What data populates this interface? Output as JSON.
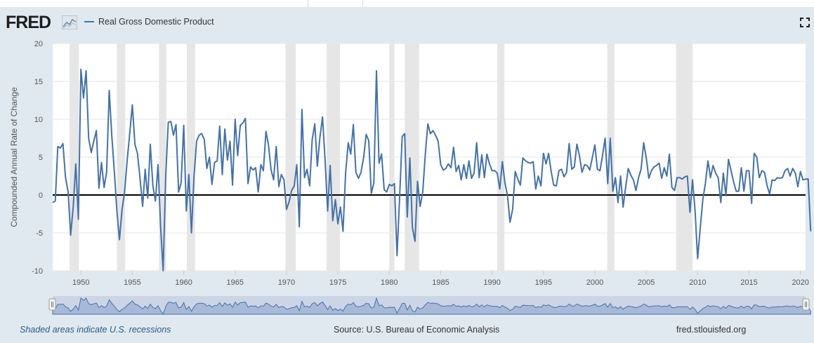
{
  "header": {
    "logo_text": "FRED",
    "legend_label": "Real Gross Domestic Product"
  },
  "footer": {
    "recession_note": "Shaded areas indicate U.S. recessions",
    "source": "Source: U.S. Bureau of Economic Analysis",
    "site": "fred.stlouisfed.org"
  },
  "colors": {
    "series": "#4572a7",
    "recession": "#e6e6e6",
    "background": "#e1e9f0"
  },
  "chart_data": {
    "type": "line",
    "title": "",
    "xlabel": "",
    "ylabel": "Compounded Annual Rate of Change",
    "xlim": [
      1947.25,
      2020.5
    ],
    "ylim": [
      -10,
      20
    ],
    "yticks": [
      -10,
      -5,
      0,
      5,
      10,
      15,
      20
    ],
    "xticks": [
      1950,
      1955,
      1960,
      1965,
      1970,
      1975,
      1980,
      1985,
      1990,
      1995,
      2000,
      2005,
      2010,
      2015,
      2020
    ],
    "ytick_labels": [
      "-10",
      "-5",
      "0",
      "5",
      "10",
      "15",
      "20"
    ],
    "xtick_labels": [
      "1950",
      "1955",
      "1960",
      "1965",
      "1970",
      "1975",
      "1980",
      "1985",
      "1990",
      "1995",
      "2000",
      "2005",
      "2010",
      "2015",
      "2020"
    ],
    "recessions": [
      [
        1948.9,
        1949.8
      ],
      [
        1953.5,
        1954.3
      ],
      [
        1957.6,
        1958.3
      ],
      [
        1960.3,
        1961.1
      ],
      [
        1969.9,
        1970.9
      ],
      [
        1973.9,
        1975.2
      ],
      [
        1980.0,
        1980.5
      ],
      [
        1981.5,
        1982.9
      ],
      [
        1990.5,
        1991.2
      ],
      [
        2001.2,
        2001.9
      ],
      [
        2007.9,
        2009.5
      ]
    ],
    "zero_line": 0,
    "series": [
      {
        "name": "Real Gross Domestic Product",
        "start": 1947.25,
        "step": 0.25,
        "values": [
          -1.0,
          -0.8,
          6.4,
          6.2,
          6.8,
          2.3,
          0.4,
          -5.3,
          -1.5,
          4.1,
          -3.2,
          16.6,
          12.8,
          16.4,
          7.5,
          5.6,
          7.1,
          8.5,
          0.9,
          4.3,
          1.0,
          3.0,
          13.8,
          7.8,
          3.1,
          -2.2,
          -5.9,
          -1.9,
          0.4,
          4.6,
          8.2,
          11.9,
          6.7,
          5.5,
          2.2,
          -1.5,
          3.4,
          -0.4,
          6.7,
          1.2,
          -0.8,
          4.0,
          -4.2,
          -10.0,
          2.6,
          9.6,
          9.7,
          7.9,
          9.3,
          0.4,
          1.6,
          9.2,
          -2.1,
          2.7,
          -5.0,
          2.4,
          7.1,
          7.9,
          8.1,
          7.3,
          3.5,
          5.0,
          1.4,
          4.3,
          4.5,
          9.1,
          2.7,
          8.7,
          4.6,
          7.1,
          1.3,
          10.0,
          5.2,
          9.2,
          9.5,
          10.1,
          1.5,
          3.7,
          3.3,
          3.6,
          0.4,
          4.0,
          3.2,
          8.4,
          6.6,
          3.3,
          2.0,
          6.4,
          1.1,
          2.7,
          2.0,
          -1.9,
          -0.9,
          0.6,
          1.2,
          4.0,
          -4.2,
          11.3,
          2.3,
          3.4,
          1.2,
          7.3,
          9.4,
          3.8,
          7.6,
          10.3,
          4.7,
          -2.1,
          3.9,
          -3.4,
          -0.6,
          -3.8,
          -1.6,
          -4.8,
          2.9,
          6.9,
          5.4,
          9.3,
          3.0,
          2.2,
          3.0,
          4.9,
          8.0,
          7.2,
          0.2,
          1.6,
          16.4,
          4.2,
          5.4,
          0.7,
          0.4,
          1.4,
          1.2,
          1.5,
          -8.0,
          -0.5,
          7.7,
          8.1,
          -2.9,
          4.9,
          -4.3,
          -6.1,
          1.8,
          -1.5,
          0.4,
          5.3,
          9.4,
          8.1,
          8.5,
          7.9,
          7.1,
          4.0,
          3.3,
          3.5,
          4.1,
          3.6,
          6.3,
          3.1,
          3.9,
          2.0,
          4.0,
          2.2,
          4.5,
          2.2,
          2.9,
          6.9,
          2.3,
          5.3,
          2.3,
          5.4,
          4.1,
          3.2,
          3.2,
          2.9,
          0.8,
          4.4,
          1.6,
          -0.1,
          -3.6,
          -1.9,
          3.1,
          2.1,
          1.3,
          4.9,
          4.5,
          4.3,
          4.2,
          4.4,
          0.8,
          2.5,
          1.2,
          5.5,
          4.1,
          5.5,
          3.1,
          1.3,
          1.2,
          3.2,
          3.4,
          2.4,
          3.0,
          6.8,
          3.4,
          3.7,
          6.7,
          5.2,
          3.0,
          4.0,
          3.9,
          3.3,
          4.9,
          6.6,
          3.4,
          3.2,
          5.3,
          7.5,
          1.5,
          7.5,
          0.5,
          2.3,
          -1.0,
          2.5,
          -1.6,
          1.1,
          3.5,
          2.6,
          2.0,
          0.6,
          2.3,
          3.4,
          6.9,
          4.9,
          2.2,
          3.2,
          3.7,
          3.9,
          4.2,
          2.2,
          3.6,
          2.5,
          5.4,
          1.0,
          0.6,
          2.3,
          2.3,
          2.1,
          2.4,
          2.5,
          -2.3,
          2.0,
          -2.1,
          -8.4,
          -4.4,
          -0.6,
          1.5,
          4.5,
          2.3,
          3.9,
          2.9,
          2.3,
          -1.0,
          2.9,
          -0.1,
          4.7,
          3.2,
          1.7,
          0.5,
          0.5,
          3.6,
          0.5,
          3.2,
          3.2,
          -1.1,
          5.5,
          5.0,
          2.3,
          3.2,
          3.0,
          1.3,
          0.1,
          2.0,
          1.9,
          2.3,
          2.2,
          2.3,
          3.2,
          3.5,
          2.5,
          3.5,
          2.9,
          1.1,
          3.1,
          2.0,
          2.1,
          2.1,
          -4.8
        ]
      }
    ]
  }
}
